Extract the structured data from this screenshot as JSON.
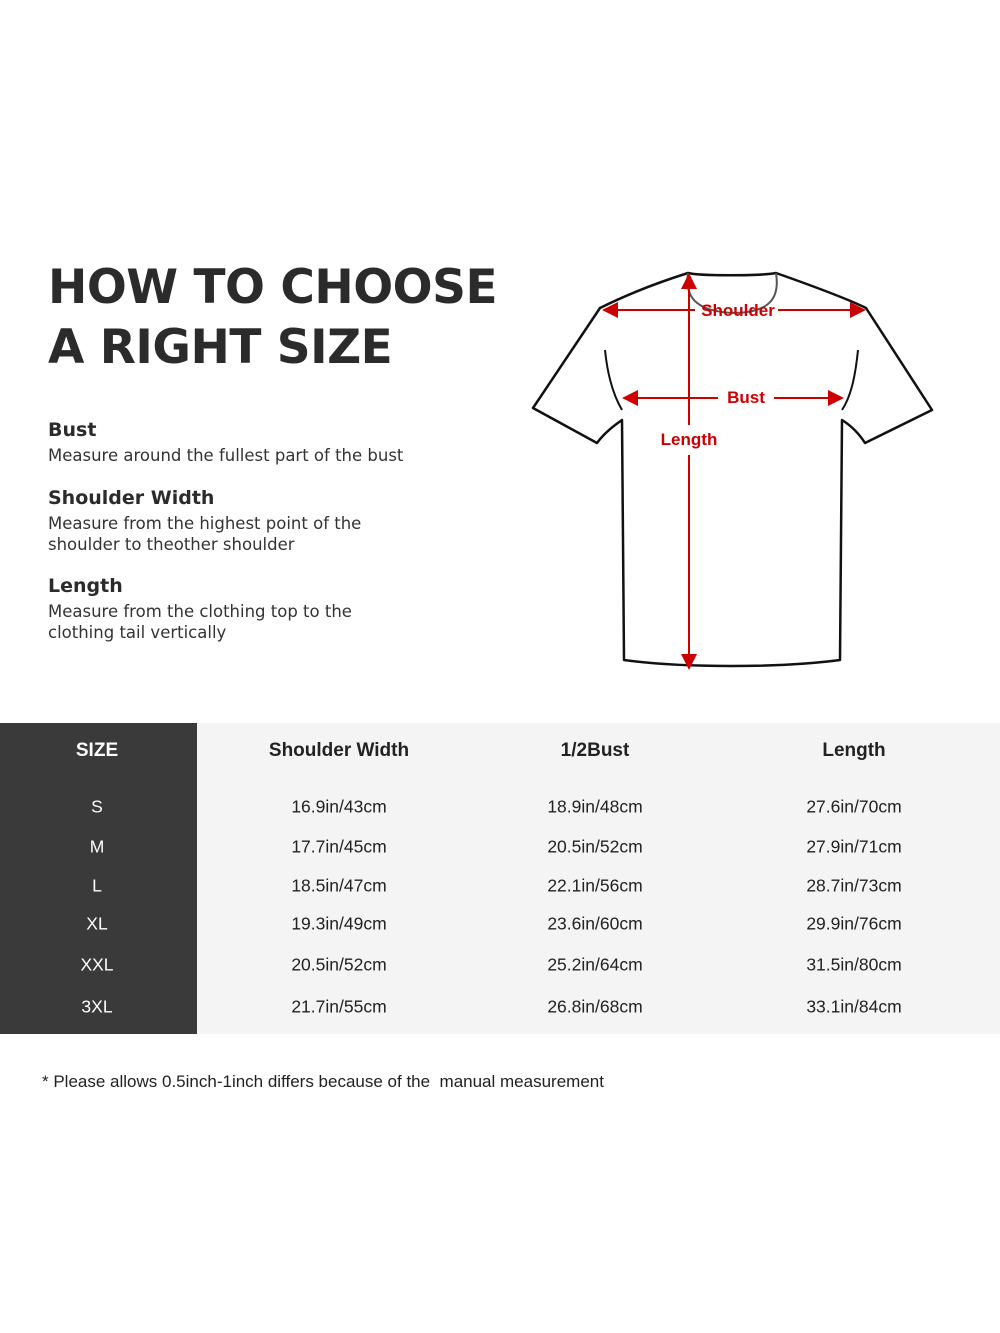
{
  "title_lines": [
    "HOW TO CHOOSE",
    "A RIGHT SIZE"
  ],
  "guide": [
    {
      "heading": "Bust",
      "text": "Measure around the fullest part of the bust"
    },
    {
      "heading": "Shoulder Width",
      "text": "Measure from the highest point of the shoulder to theother shoulder"
    },
    {
      "heading": "Length",
      "text": "Measure from the clothing top to the clothing tail vertically"
    }
  ],
  "diagram": {
    "labels": {
      "shoulder": "Shoulder",
      "bust": "Bust",
      "length": "Length"
    },
    "arrow_color": "#cc0000",
    "outline_color": "#111111"
  },
  "table": {
    "headers": [
      "SIZE",
      "Shoulder Width",
      "1/2Bust",
      "Length"
    ],
    "rows": [
      [
        "S",
        "16.9in/43cm",
        "18.9in/48cm",
        "27.6in/70cm"
      ],
      [
        "M",
        "17.7in/45cm",
        "20.5in/52cm",
        "27.9in/71cm"
      ],
      [
        "L",
        "18.5in/47cm",
        "22.1in/56cm",
        "28.7in/73cm"
      ],
      [
        "XL",
        "19.3in/49cm",
        "23.6in/60cm",
        "29.9in/76cm"
      ],
      [
        "XXL",
        "20.5in/52cm",
        "25.2in/64cm",
        "31.5in/80cm"
      ],
      [
        "3XL",
        "21.7in/55cm",
        "26.8in/68cm",
        "33.1in/84cm"
      ]
    ],
    "size_column_color": "#3a3a3a",
    "body_color": "#f4f4f4"
  },
  "note": "* Please allows 0.5inch-1inch differs because of the  manual measurement"
}
